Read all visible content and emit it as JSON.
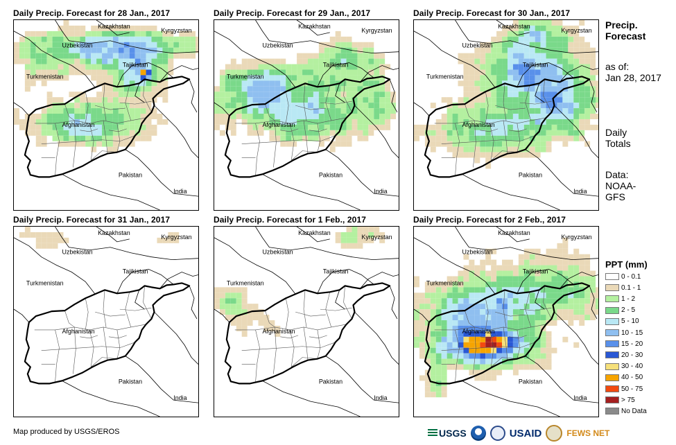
{
  "panels": [
    {
      "title": "Daily Precip. Forecast for 28 Jan., 2017",
      "pattern": "p28"
    },
    {
      "title": "Daily Precip. Forecast for 29 Jan., 2017",
      "pattern": "p29"
    },
    {
      "title": "Daily Precip. Forecast for 30 Jan., 2017",
      "pattern": "p30"
    },
    {
      "title": "Daily Precip. Forecast for 31 Jan., 2017",
      "pattern": "p31"
    },
    {
      "title": "Daily Precip. Forecast for 1 Feb., 2017",
      "pattern": "p01"
    },
    {
      "title": "Daily Precip. Forecast for 2 Feb., 2017",
      "pattern": "p02"
    }
  ],
  "map_labels": {
    "kazakhstan": "Kazakhstan",
    "kyrgyzstan": "Kyrgyzstan",
    "uzbekistan": "Uzbekistan",
    "tajikistan": "Tajikistan",
    "turkmenistan": "Turkmenistan",
    "afghanistan": "Afghanistan",
    "pakistan": "Pakistan",
    "india": "India"
  },
  "side": {
    "title_line1": "Precip.",
    "title_line2": "Forecast",
    "asof_label": "as of:",
    "asof_date": "Jan 28, 2017",
    "totals_line1": "Daily",
    "totals_line2": "Totals",
    "data_line1": "Data:",
    "data_line2": "NOAA-",
    "data_line3": "GFS"
  },
  "legend": {
    "title": "PPT (mm)",
    "items": [
      {
        "label": "0 - 0.1",
        "color": "#ffffff"
      },
      {
        "label": "0.1 - 1",
        "color": "#ead9b8"
      },
      {
        "label": "1 - 2",
        "color": "#b4f0a0"
      },
      {
        "label": "2 - 5",
        "color": "#7ad98a"
      },
      {
        "label": "5 - 10",
        "color": "#b9e8f4"
      },
      {
        "label": "10 - 15",
        "color": "#8fbff0"
      },
      {
        "label": "15 - 20",
        "color": "#5990ea"
      },
      {
        "label": "20 - 30",
        "color": "#2957d4"
      },
      {
        "label": "30 - 40",
        "color": "#f6e07a"
      },
      {
        "label": "40 - 50",
        "color": "#f6a400"
      },
      {
        "label": "50 - 75",
        "color": "#f24a10"
      },
      {
        "label": "> 75",
        "color": "#a51f1f"
      },
      {
        "label": "No Data",
        "color": "#8a8a8a"
      }
    ]
  },
  "footer": {
    "credit": "Map produced by USGS/EROS"
  },
  "logos": {
    "usgs": "USGS",
    "usaid": "USAID",
    "fews": "FEWS NET"
  }
}
